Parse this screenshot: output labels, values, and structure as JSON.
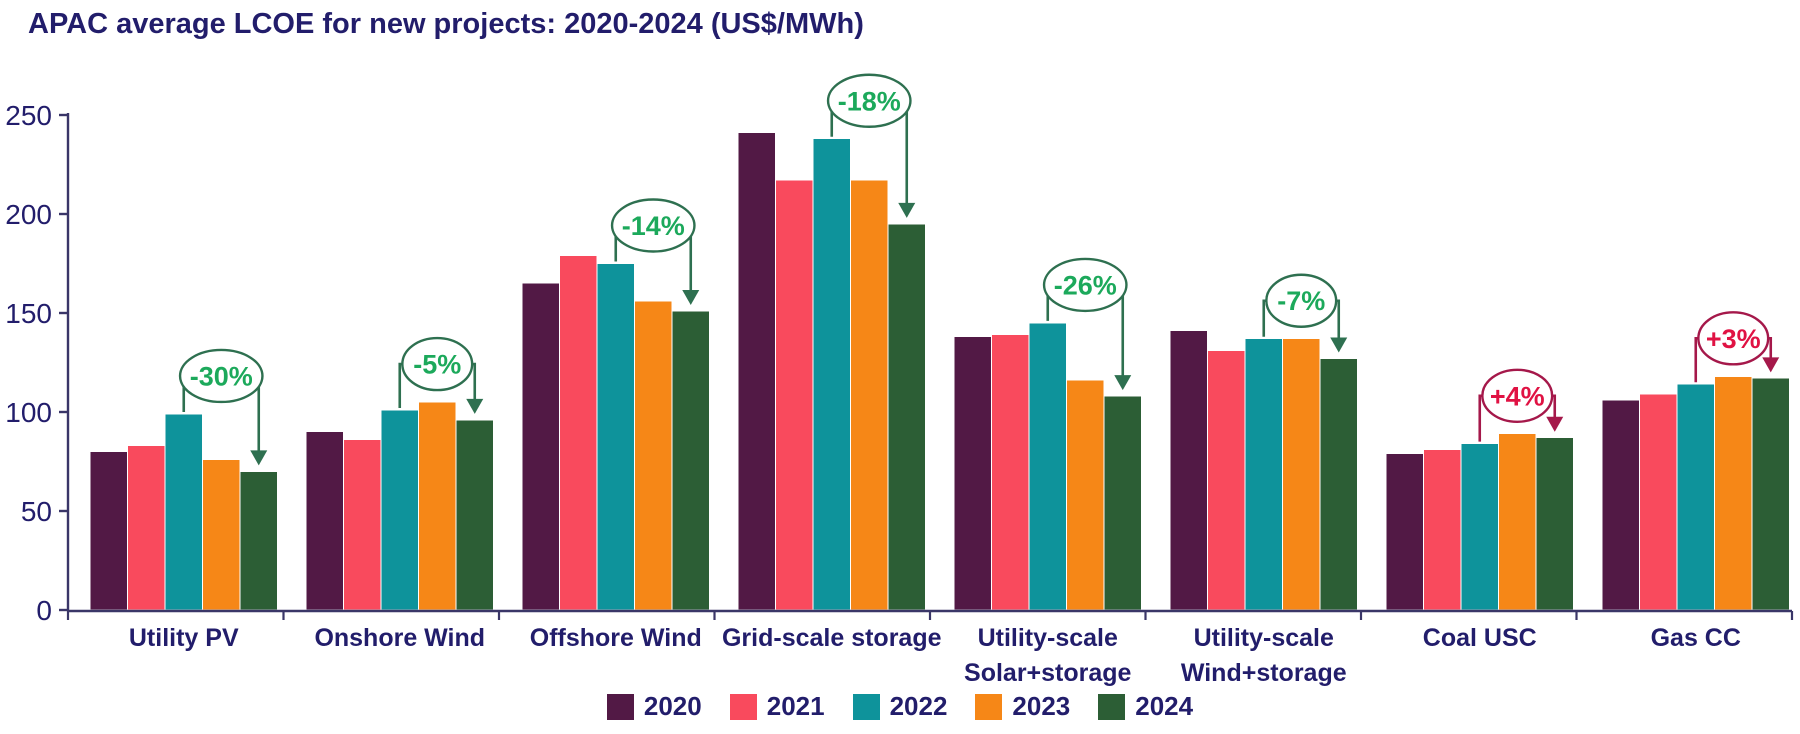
{
  "title": "APAC average LCOE for new projects: 2020-2024 (US$/MWh)",
  "colors": {
    "background": "#ffffff",
    "text_navy": "#221d6b",
    "axis_line": "#3a3668",
    "decrease_text": "#1ca95b",
    "decrease_line": "#2e7050",
    "increase_text": "#e01243",
    "increase_line": "#a5184a"
  },
  "chart_data": {
    "type": "bar",
    "title": "APAC average LCOE for new projects: 2020-2024 (US$/MWh)",
    "ylabel": "US$/MWh",
    "ylim": [
      0,
      250
    ],
    "yticks": [
      0,
      50,
      100,
      150,
      200,
      250
    ],
    "grid": false,
    "legend_position": "bottom",
    "categories": [
      {
        "lines": [
          "Utility PV"
        ]
      },
      {
        "lines": [
          "Onshore Wind"
        ]
      },
      {
        "lines": [
          "Offshore Wind"
        ]
      },
      {
        "lines": [
          "Grid-scale storage"
        ]
      },
      {
        "lines": [
          "Utility-scale",
          "Solar+storage"
        ]
      },
      {
        "lines": [
          "Utility-scale",
          "Wind+storage"
        ]
      },
      {
        "lines": [
          "Coal USC"
        ]
      },
      {
        "lines": [
          "Gas CC"
        ]
      }
    ],
    "series": [
      {
        "name": "2020",
        "color": "#521945",
        "values": [
          80,
          90,
          165,
          241,
          138,
          141,
          79,
          106
        ]
      },
      {
        "name": "2021",
        "color": "#f94a5d",
        "values": [
          83,
          86,
          179,
          217,
          139,
          131,
          81,
          109
        ]
      },
      {
        "name": "2022",
        "color": "#0e939b",
        "values": [
          99,
          101,
          175,
          238,
          145,
          137,
          84,
          114
        ]
      },
      {
        "name": "2023",
        "color": "#f68717",
        "values": [
          76,
          105,
          156,
          217,
          116,
          137,
          89,
          118
        ]
      },
      {
        "name": "2024",
        "color": "#2c5e35",
        "values": [
          70,
          96,
          151,
          195,
          108,
          127,
          87,
          117
        ]
      }
    ],
    "annotations": [
      {
        "category_index": 0,
        "label": "-30%",
        "trend": "decrease"
      },
      {
        "category_index": 1,
        "label": "-5%",
        "trend": "decrease"
      },
      {
        "category_index": 2,
        "label": "-14%",
        "trend": "decrease"
      },
      {
        "category_index": 3,
        "label": "-18%",
        "trend": "decrease"
      },
      {
        "category_index": 4,
        "label": "-26%",
        "trend": "decrease"
      },
      {
        "category_index": 5,
        "label": "-7%",
        "trend": "decrease"
      },
      {
        "category_index": 6,
        "label": "+4%",
        "trend": "increase"
      },
      {
        "category_index": 7,
        "label": "+3%",
        "trend": "increase"
      }
    ]
  }
}
